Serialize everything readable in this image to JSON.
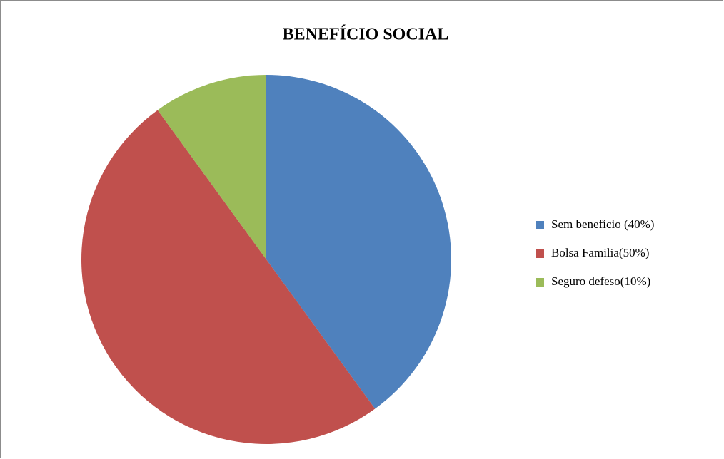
{
  "chart_data": {
    "type": "pie",
    "title": "BENEFÍCIO SOCIAL",
    "categories": [
      "Sem benefício (40%)",
      "Bolsa Familia(50%)",
      "Seguro defeso(10%)"
    ],
    "values": [
      40,
      50,
      10
    ],
    "colors": [
      "#4f81bd",
      "#c0504d",
      "#9bbb59"
    ],
    "legend": "right"
  }
}
